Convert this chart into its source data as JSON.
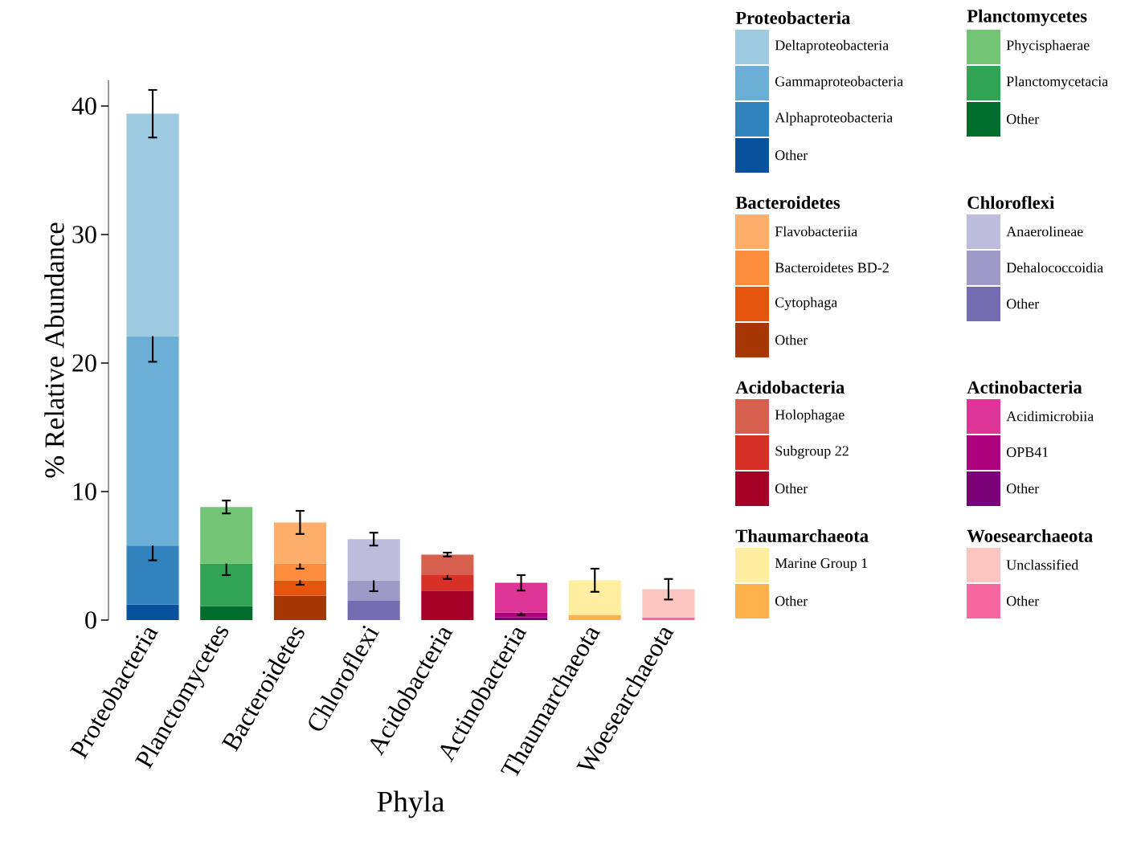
{
  "chart_data": {
    "type": "bar",
    "stacked": true,
    "xlabel": "Phyla",
    "ylabel": "% Relative Abundance",
    "categories": [
      "Proteobacteria",
      "Planctomycetes",
      "Bacteroidetes",
      "Chloroflexi",
      "Acidobacteria",
      "Actinobacteria",
      "Thaumarchaeota",
      "Woesearchaeota"
    ],
    "ylim": [
      0,
      42
    ],
    "yticks": [
      0,
      10,
      20,
      30,
      40
    ],
    "grid": false,
    "legend": "right",
    "series": [
      {
        "name": "Other",
        "color": "#08519c",
        "values": [
          1.2,
          null,
          null,
          null,
          null,
          null,
          null,
          null
        ]
      },
      {
        "name": "Alphaproteobacteria",
        "color": "#3182bd",
        "values": [
          4.6,
          null,
          null,
          null,
          null,
          null,
          null,
          null
        ],
        "errors": [
          1.15,
          null,
          null,
          null,
          null,
          null,
          null,
          null
        ]
      },
      {
        "name": "Gammaproteobacteria",
        "color": "#6baed6",
        "values": [
          16.3,
          null,
          null,
          null,
          null,
          null,
          null,
          null
        ],
        "errors": [
          2.0,
          null,
          null,
          null,
          null,
          null,
          null,
          null
        ]
      },
      {
        "name": "Deltaproteobacteria",
        "color": "#9ecae1",
        "values": [
          17.3,
          null,
          null,
          null,
          null,
          null,
          null,
          null
        ],
        "errors": [
          1.85,
          null,
          null,
          null,
          null,
          null,
          null,
          null
        ]
      },
      {
        "name": "Other",
        "color": "#006d2c",
        "values": [
          null,
          1.1,
          null,
          null,
          null,
          null,
          null,
          null
        ]
      },
      {
        "name": "Planctomycetacia",
        "color": "#31a354",
        "values": [
          null,
          3.3,
          null,
          null,
          null,
          null,
          null,
          null
        ],
        "errors": [
          null,
          0.9,
          null,
          null,
          null,
          null,
          null,
          null
        ]
      },
      {
        "name": "Phycisphaerae",
        "color": "#74c476",
        "values": [
          null,
          4.4,
          null,
          null,
          null,
          null,
          null,
          null
        ],
        "errors": [
          null,
          0.5,
          null,
          null,
          null,
          null,
          null,
          null
        ]
      },
      {
        "name": "Other",
        "color": "#a63603",
        "values": [
          null,
          null,
          1.9,
          null,
          null,
          null,
          null,
          null
        ]
      },
      {
        "name": "Cytophaga",
        "color": "#e6550d",
        "values": [
          null,
          null,
          1.2,
          null,
          null,
          null,
          null,
          null
        ],
        "errors": [
          null,
          null,
          0.35,
          null,
          null,
          null,
          null,
          null
        ]
      },
      {
        "name": "Bacteroidetes BD-2",
        "color": "#fd8d3c",
        "values": [
          null,
          null,
          1.3,
          null,
          null,
          null,
          null,
          null
        ],
        "errors": [
          null,
          null,
          0.4,
          null,
          null,
          null,
          null,
          null
        ]
      },
      {
        "name": "Flavobacteriia",
        "color": "#fdae6b",
        "values": [
          null,
          null,
          3.2,
          null,
          null,
          null,
          null,
          null
        ],
        "errors": [
          null,
          null,
          0.9,
          null,
          null,
          null,
          null,
          null
        ]
      },
      {
        "name": "Other",
        "color": "#756bb1",
        "values": [
          null,
          null,
          null,
          1.5,
          null,
          null,
          null,
          null
        ]
      },
      {
        "name": "Dehalococcoidia",
        "color": "#9e9ac8",
        "values": [
          null,
          null,
          null,
          1.6,
          null,
          null,
          null,
          null
        ],
        "errors": [
          null,
          null,
          null,
          0.85,
          null,
          null,
          null,
          null
        ]
      },
      {
        "name": "Anaerolineae",
        "color": "#bcbddc",
        "values": [
          null,
          null,
          null,
          3.2,
          null,
          null,
          null,
          null
        ],
        "errors": [
          null,
          null,
          null,
          0.5,
          null,
          null,
          null,
          null
        ]
      },
      {
        "name": "Other",
        "color": "#a50026",
        "values": [
          null,
          null,
          null,
          null,
          2.3,
          null,
          null,
          null
        ]
      },
      {
        "name": "Subgroup 22",
        "color": "#d73027",
        "values": [
          null,
          null,
          null,
          null,
          1.2,
          null,
          null,
          null
        ],
        "errors": [
          null,
          null,
          null,
          null,
          0.3,
          null,
          null,
          null
        ]
      },
      {
        "name": "Holophagae",
        "color": "#d6604d",
        "values": [
          null,
          null,
          null,
          null,
          1.6,
          null,
          null,
          null
        ],
        "errors": [
          null,
          null,
          null,
          null,
          0.15,
          null,
          null,
          null
        ]
      },
      {
        "name": "Other",
        "color": "#7a0177",
        "values": [
          null,
          null,
          null,
          null,
          null,
          0.2,
          null,
          null
        ]
      },
      {
        "name": "OPB41",
        "color": "#ae017e",
        "values": [
          null,
          null,
          null,
          null,
          null,
          0.4,
          null,
          null
        ],
        "errors": [
          null,
          null,
          null,
          null,
          null,
          0.2,
          null,
          null
        ]
      },
      {
        "name": "Acidimicrobiia",
        "color": "#dd3497",
        "values": [
          null,
          null,
          null,
          null,
          null,
          2.3,
          null,
          null
        ],
        "errors": [
          null,
          null,
          null,
          null,
          null,
          0.6,
          null,
          null
        ]
      },
      {
        "name": "Other",
        "color": "#feb24c",
        "values": [
          null,
          null,
          null,
          null,
          null,
          null,
          0.4,
          null
        ]
      },
      {
        "name": "Marine Group 1",
        "color": "#ffeda0",
        "values": [
          null,
          null,
          null,
          null,
          null,
          null,
          2.7,
          null
        ],
        "errors": [
          null,
          null,
          null,
          null,
          null,
          null,
          0.9,
          null
        ]
      },
      {
        "name": "Other",
        "color": "#f768a1",
        "values": [
          null,
          null,
          null,
          null,
          null,
          null,
          null,
          0.2
        ]
      },
      {
        "name": "Unclassified",
        "color": "#fcc5c0",
        "values": [
          null,
          null,
          null,
          null,
          null,
          null,
          null,
          2.2
        ],
        "errors": [
          null,
          null,
          null,
          null,
          null,
          null,
          null,
          0.8
        ]
      }
    ]
  }
}
